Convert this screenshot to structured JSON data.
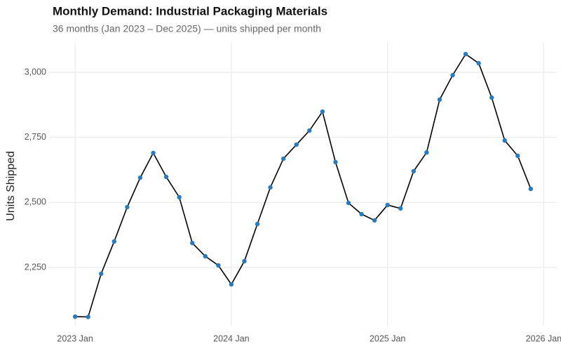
{
  "chart_data": {
    "type": "line",
    "title": "Monthly Demand: Industrial Packaging Materials",
    "subtitle": "36 months (Jan 2023 – Dec 2025) — units shipped per month",
    "y_label": "Units Shipped",
    "x": [
      "2023-01",
      "2023-02",
      "2023-03",
      "2023-04",
      "2023-05",
      "2023-06",
      "2023-07",
      "2023-08",
      "2023-09",
      "2023-10",
      "2023-11",
      "2023-12",
      "2024-01",
      "2024-02",
      "2024-03",
      "2024-04",
      "2024-05",
      "2024-06",
      "2024-07",
      "2024-08",
      "2024-09",
      "2024-10",
      "2024-11",
      "2024-12",
      "2025-01",
      "2025-02",
      "2025-03",
      "2025-04",
      "2025-05",
      "2025-06",
      "2025-07",
      "2025-08",
      "2025-09",
      "2025-10",
      "2025-11",
      "2025-12"
    ],
    "series": [
      {
        "name": "Units Shipped",
        "color": "#000000",
        "marker_color": "#2b7bba",
        "values": [
          2061,
          2060,
          2226,
          2350,
          2482,
          2595,
          2690,
          2598,
          2520,
          2344,
          2293,
          2258,
          2185,
          2274,
          2417,
          2558,
          2668,
          2722,
          2776,
          2849,
          2655,
          2498,
          2455,
          2431,
          2490,
          2477,
          2620,
          2692,
          2895,
          2989,
          3070,
          3035,
          2903,
          2738,
          2679,
          2552
        ]
      }
    ],
    "xlim": [
      "2022-11",
      "2026-02"
    ],
    "xticks": [
      {
        "value": "2023-01",
        "label": "2023 Jan"
      },
      {
        "value": "2024-01",
        "label": "2024 Jan"
      },
      {
        "value": "2025-01",
        "label": "2025 Jan"
      },
      {
        "value": "2026-01",
        "label": "2026 Jan"
      }
    ],
    "ylim": [
      2025,
      3115
    ],
    "yticks": [
      {
        "value": 2250,
        "label": "2,250"
      },
      {
        "value": 2500,
        "label": "2,500"
      },
      {
        "value": 2750,
        "label": "2,750"
      },
      {
        "value": 3000,
        "label": "3,000"
      }
    ],
    "grid": true
  }
}
